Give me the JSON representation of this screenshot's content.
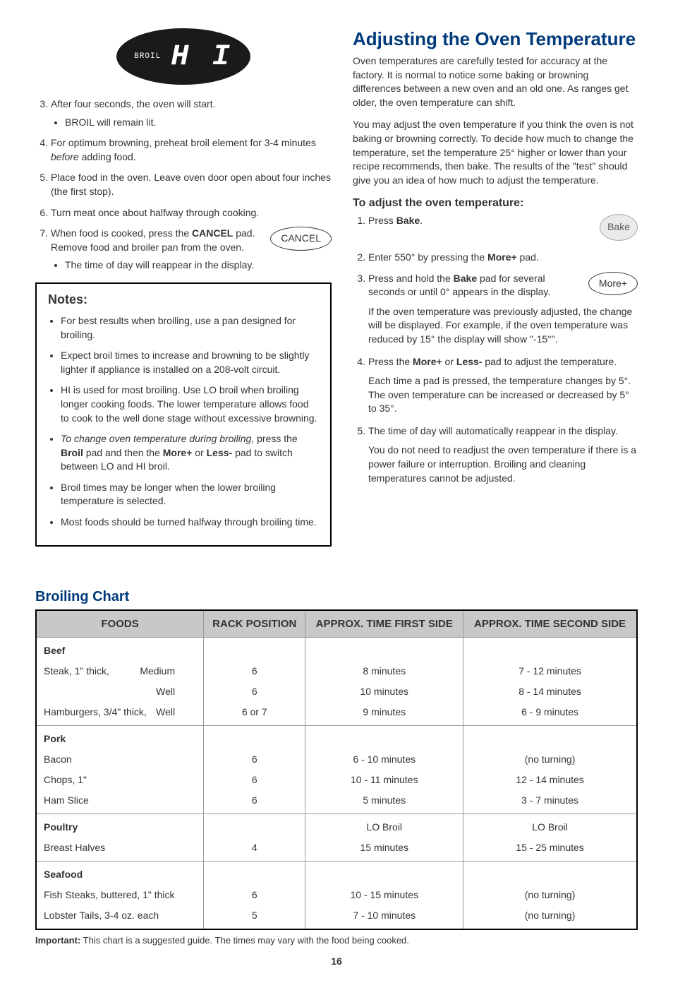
{
  "display": {
    "small": "BROIL",
    "big": "H I"
  },
  "left_steps_start": 3,
  "left_steps": [
    {
      "text_before": "After four seconds, the oven will start.",
      "sub": [
        "BROIL will remain lit."
      ]
    },
    {
      "parts": [
        "For optimum browning, preheat broil element for 3-4 minutes ",
        {
          "i": "before"
        },
        " adding food."
      ]
    },
    {
      "text_before": "Place food in the oven.  Leave oven door open about four inches (the first stop)."
    },
    {
      "text_before": "Turn meat once about halfway through cooking."
    },
    {
      "parts": [
        "When food is cooked, press the ",
        {
          "b": "CANCEL"
        },
        " pad.  Remove food and broiler pan from the oven."
      ],
      "button": "CANCEL",
      "sub": [
        "The time of day will reappear in the display."
      ]
    }
  ],
  "notes": {
    "title": "Notes:",
    "items": [
      {
        "parts": [
          "For best results when broiling, use a pan designed for broiling."
        ]
      },
      {
        "parts": [
          "Expect broil times to increase and browning to be slightly lighter if appliance is installed on a 208-volt circuit."
        ]
      },
      {
        "parts": [
          "HI is used for most broiling.  Use LO broil when broiling longer cooking foods.  The lower temperature allows food to cook to the well done stage without excessive browning."
        ]
      },
      {
        "parts": [
          {
            "i": "To change oven temperature during broiling,"
          },
          " press the ",
          {
            "b": "Broil"
          },
          " pad and then the ",
          {
            "b": "More+"
          },
          " or ",
          {
            "b": "Less-"
          },
          " pad to switch between LO and HI broil."
        ]
      },
      {
        "parts": [
          "Broil times may be longer when the lower broiling temperature is selected."
        ]
      },
      {
        "parts": [
          "Most foods should be turned halfway through broiling time."
        ]
      }
    ]
  },
  "right": {
    "heading": "Adjusting the Oven Temperature",
    "p1": "Oven temperatures are carefully tested for accuracy at the factory.  It is normal to notice some baking or browning differences between a new oven and an old one.  As ranges get older, the oven temperature can shift.",
    "p2": "You may adjust the oven temperature if you think the oven is not baking or browning correctly.  To decide how much to change the temperature, set the temperature 25° higher or lower than your recipe recommends, then bake.  The results of the \"test\" should give you an idea of how much to adjust the temperature.",
    "sub_heading": "To adjust the oven temperature:",
    "steps": [
      {
        "parts": [
          "Press ",
          {
            "b": "Bake"
          },
          "."
        ],
        "button": "Bake",
        "btn_class": "btn-circle"
      },
      {
        "parts": [
          "Enter 550° by pressing the ",
          {
            "b": "More+"
          },
          " pad."
        ]
      },
      {
        "parts": [
          "Press and hold the ",
          {
            "b": "Bake"
          },
          " pad for several seconds or until 0° appears in the display."
        ],
        "button": "More+",
        "btn_class": "btn-oval",
        "after": "If the oven temperature was previously adjusted, the change will be displayed.  For example, if the oven temperature was reduced by 15° the display will show \"-15°\"."
      },
      {
        "parts": [
          "Press the ",
          {
            "b": "More+"
          },
          " or ",
          {
            "b": "Less-"
          },
          " pad to adjust the temperature."
        ],
        "after": "Each time a pad is pressed, the temperature changes by 5°.  The oven temperature can be increased or decreased by 5° to 35°."
      },
      {
        "parts": [
          "The time of day will automatically reappear in the display."
        ],
        "after": "You do not need to readjust the oven temperature if there is a power failure or interruption. Broiling and cleaning temperatures cannot be adjusted."
      }
    ]
  },
  "broil": {
    "title": "Broiling Chart",
    "headers": [
      "FOODS",
      "RACK POSITION",
      "APPROX. TIME FIRST SIDE",
      "APPROX. TIME SECOND SIDE"
    ],
    "groups": [
      {
        "label": "Beef",
        "rows": [
          {
            "food": "Steak, 1\" thick,",
            "done": "Medium",
            "rack": "6",
            "t1": "8 minutes",
            "t2": "7 - 12 minutes"
          },
          {
            "food": "",
            "done": "Well",
            "rack": "6",
            "t1": "10 minutes",
            "t2": "8 - 14 minutes"
          },
          {
            "food": "Hamburgers, 3/4\" thick,",
            "done": "Well",
            "rack": "6 or 7",
            "t1": "9 minutes",
            "t2": "6 - 9 minutes"
          }
        ]
      },
      {
        "label": "Pork",
        "rows": [
          {
            "food": "Bacon",
            "rack": "6",
            "t1": "6 - 10 minutes",
            "t2": "(no turning)"
          },
          {
            "food": "Chops, 1\"",
            "rack": "6",
            "t1": "10 - 11 minutes",
            "t2": "12 - 14 minutes"
          },
          {
            "food": "Ham Slice",
            "rack": "6",
            "t1": "5 minutes",
            "t2": "3 - 7 minutes"
          }
        ]
      },
      {
        "label": "Poultry",
        "rows": [
          {
            "food": "Breast Halves",
            "rack": "4",
            "t1": "LO Broil\n15 minutes",
            "t2": "LO Broil\n15 - 25 minutes"
          }
        ]
      },
      {
        "label": "Seafood",
        "rows": [
          {
            "food": "Fish Steaks, buttered, 1\" thick",
            "rack": "6",
            "t1": "10 - 15 minutes",
            "t2": "(no turning)"
          },
          {
            "food": "Lobster Tails, 3-4 oz. each",
            "rack": "5",
            "t1": "7 - 10 minutes",
            "t2": "(no turning)"
          }
        ]
      }
    ],
    "footnote_label": "Important:",
    "footnote": " This chart is a suggested guide. The times may vary with the food being cooked."
  },
  "page_num": "16"
}
